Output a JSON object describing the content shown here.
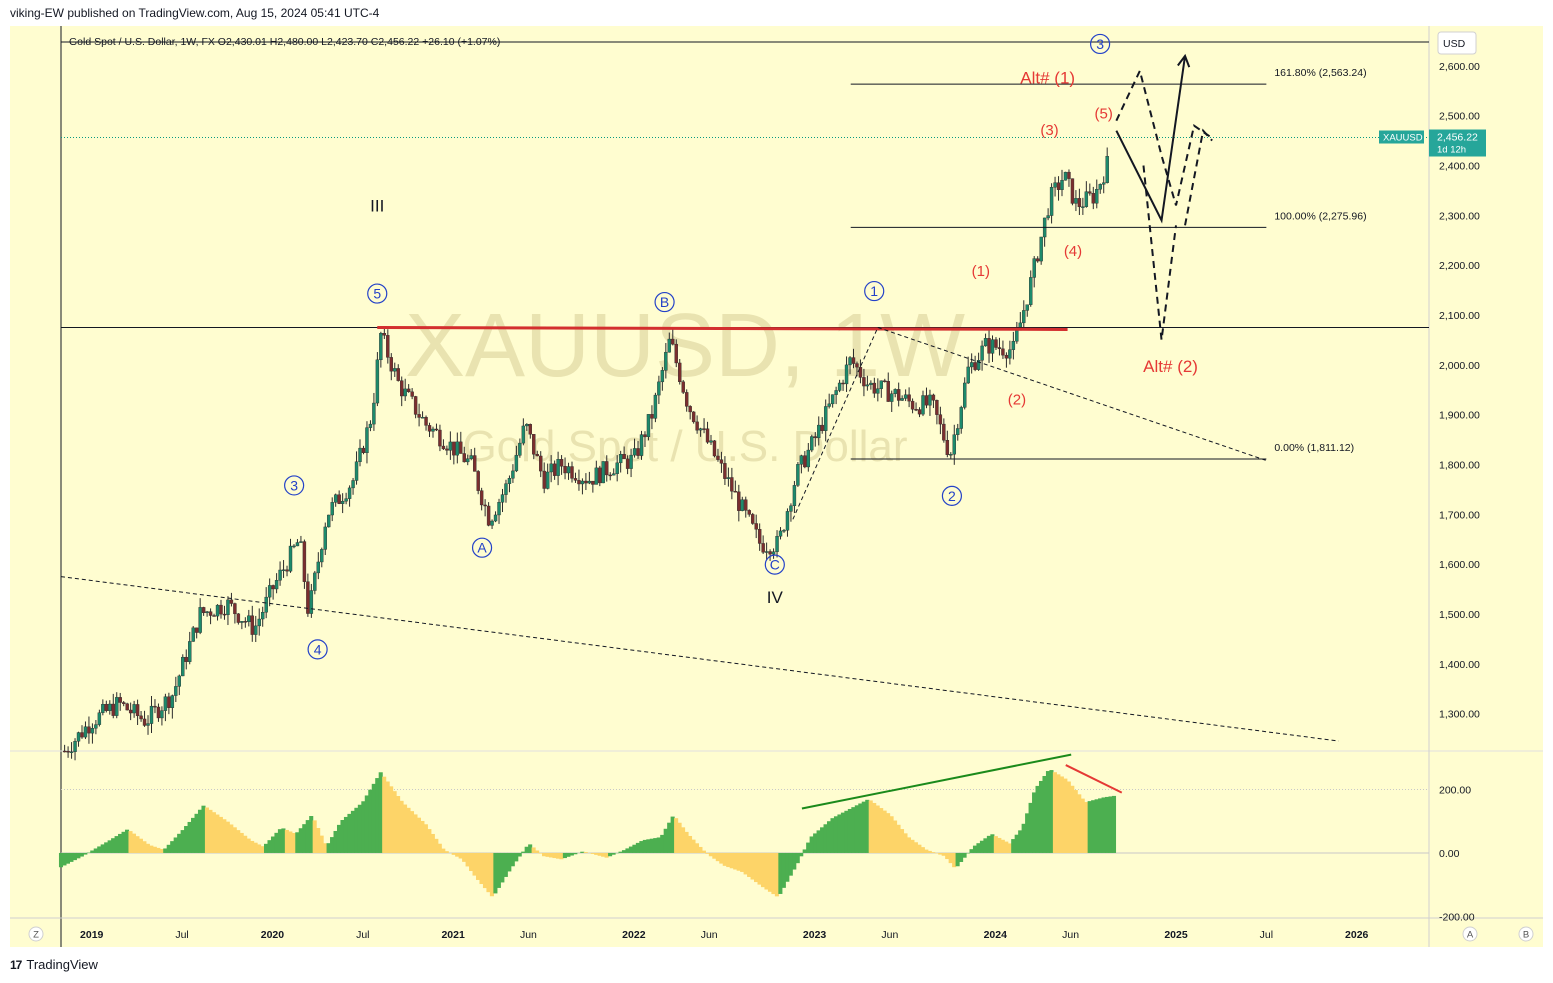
{
  "header": {
    "published": "viking-EW published on TradingView.com, Aug 15, 2024 05:41 UTC-4"
  },
  "footer": {
    "brand": "TradingView"
  },
  "chart_data": {
    "type": "candlestick",
    "symbol_line": "Gold Spot / U.S. Dollar, 1W, FX  O2,430.01  H2,480.00  L2,423.70  C2,456.22  +26.10 (+1.07%)",
    "watermark": {
      "symbol": "XAUUSD, 1W",
      "description": "Gold Spot / U.S. Dollar"
    },
    "currency_label": "USD",
    "price_axis": {
      "ticks": [
        1300,
        1400,
        1500,
        1600,
        1700,
        1800,
        1900,
        2000,
        2100,
        2200,
        2300,
        2400,
        2500,
        2600
      ],
      "tick_labels": [
        "1,300.00",
        "1,400.00",
        "1,500.00",
        "1,600.00",
        "1,700.00",
        "1,800.00",
        "1,900.00",
        "2,000.00",
        "2,100.00",
        "2,200.00",
        "2,300.00",
        "2,400.00",
        "2,500.00",
        "2,600.00"
      ],
      "range": [
        1225,
        2680
      ]
    },
    "time_axis": {
      "labels": [
        {
          "t": 2019.0,
          "label": "2019"
        },
        {
          "t": 2019.5,
          "label": "Jul"
        },
        {
          "t": 2020.0,
          "label": "2020"
        },
        {
          "t": 2020.5,
          "label": "Jul"
        },
        {
          "t": 2021.0,
          "label": "2021"
        },
        {
          "t": 2021.4167,
          "label": "Jun"
        },
        {
          "t": 2022.0,
          "label": "2022"
        },
        {
          "t": 2022.4167,
          "label": "Jun"
        },
        {
          "t": 2023.0,
          "label": "2023"
        },
        {
          "t": 2023.4167,
          "label": "Jun"
        },
        {
          "t": 2024.0,
          "label": "2024"
        },
        {
          "t": 2024.4167,
          "label": "Jun"
        },
        {
          "t": 2025.0,
          "label": "2025"
        },
        {
          "t": 2025.5,
          "label": "Jul"
        },
        {
          "t": 2026.0,
          "label": "2026"
        }
      ],
      "range": [
        2018.83,
        2026.4
      ]
    },
    "last_price": {
      "symbol": "XAUUSD",
      "value": 2456.22,
      "label": "2,456.22",
      "countdown": "1d 12h"
    },
    "price_path": [
      [
        2018.85,
        1225
      ],
      [
        2019.0,
        1285
      ],
      [
        2019.15,
        1320
      ],
      [
        2019.3,
        1285
      ],
      [
        2019.45,
        1340
      ],
      [
        2019.6,
        1500
      ],
      [
        2019.75,
        1520
      ],
      [
        2019.9,
        1470
      ],
      [
        2020.0,
        1550
      ],
      [
        2020.15,
        1650
      ],
      [
        2020.2,
        1500
      ],
      [
        2020.3,
        1700
      ],
      [
        2020.45,
        1770
      ],
      [
        2020.55,
        1900
      ],
      [
        2020.6,
        2060
      ],
      [
        2020.7,
        1960
      ],
      [
        2020.85,
        1880
      ],
      [
        2020.95,
        1850
      ],
      [
        2021.1,
        1800
      ],
      [
        2021.2,
        1690
      ],
      [
        2021.3,
        1760
      ],
      [
        2021.4,
        1880
      ],
      [
        2021.5,
        1770
      ],
      [
        2021.6,
        1800
      ],
      [
        2021.75,
        1770
      ],
      [
        2021.9,
        1800
      ],
      [
        2022.0,
        1810
      ],
      [
        2022.1,
        1900
      ],
      [
        2022.2,
        2050
      ],
      [
        2022.3,
        1920
      ],
      [
        2022.4,
        1850
      ],
      [
        2022.5,
        1780
      ],
      [
        2022.6,
        1710
      ],
      [
        2022.7,
        1640
      ],
      [
        2022.8,
        1640
      ],
      [
        2022.9,
        1780
      ],
      [
        2023.0,
        1850
      ],
      [
        2023.1,
        1930
      ],
      [
        2023.2,
        2010
      ],
      [
        2023.3,
        1960
      ],
      [
        2023.45,
        1940
      ],
      [
        2023.55,
        1920
      ],
      [
        2023.65,
        1920
      ],
      [
        2023.75,
        1820
      ],
      [
        2023.85,
        1990
      ],
      [
        2023.95,
        2040
      ],
      [
        2024.1,
        2030
      ],
      [
        2024.2,
        2170
      ],
      [
        2024.3,
        2330
      ],
      [
        2024.38,
        2380
      ],
      [
        2024.45,
        2320
      ],
      [
        2024.55,
        2340
      ],
      [
        2024.65,
        2430
      ],
      [
        2024.62,
        2456.22
      ]
    ],
    "horizontal_lines": [
      {
        "price": 2075
      }
    ],
    "fib_levels": [
      {
        "price": 2563.24,
        "label": "161.80% (2,563.24)"
      },
      {
        "price": 2275.96,
        "label": "100.00% (2,275.96)"
      },
      {
        "price": 1811.12,
        "label": "0.00% (1,811.12)"
      }
    ],
    "resistance_line": {
      "from": [
        2020.58,
        2075
      ],
      "to": [
        2024.4,
        2071
      ]
    },
    "trend_lines": [
      {
        "from": [
          2018.83,
          1575
        ],
        "to": [
          2025.9,
          1245
        ]
      },
      {
        "from": [
          2023.35,
          2075
        ],
        "to": [
          2025.5,
          1808
        ]
      },
      {
        "from": [
          2022.88,
          1690
        ],
        "to": [
          2023.35,
          2075
        ]
      }
    ],
    "projections": {
      "solid": [
        [
          2024.67,
          2470
        ],
        [
          2024.92,
          2290
        ],
        [
          2025.05,
          2620
        ]
      ],
      "dashed": [
        [
          [
            2024.67,
            2490
          ],
          [
            2024.8,
            2590
          ],
          [
            2024.92,
            2420
          ],
          [
            2025.0,
            2320
          ],
          [
            2025.1,
            2480
          ],
          [
            2025.2,
            2455
          ]
        ],
        [
          [
            2024.82,
            2400
          ],
          [
            2024.92,
            2050
          ],
          [
            2025.0,
            2280
          ]
        ],
        [
          [
            2025.05,
            2280
          ],
          [
            2025.15,
            2470
          ],
          [
            2025.2,
            2450
          ]
        ]
      ]
    },
    "wave_labels": [
      {
        "text": "III",
        "t": 2020.58,
        "p": 2320,
        "color": "#131722",
        "style": "plain"
      },
      {
        "text": "5",
        "t": 2020.58,
        "p": 2143,
        "color": "#2442c8",
        "style": "circle"
      },
      {
        "text": "3",
        "t": 2020.12,
        "p": 1758,
        "color": "#2442c8",
        "style": "circle"
      },
      {
        "text": "4",
        "t": 2020.25,
        "p": 1429,
        "color": "#2442c8",
        "style": "circle"
      },
      {
        "text": "A",
        "t": 2021.16,
        "p": 1633,
        "color": "#2442c8",
        "style": "circle"
      },
      {
        "text": "B",
        "t": 2022.17,
        "p": 2126,
        "color": "#2442c8",
        "style": "circle"
      },
      {
        "text": "C",
        "t": 2022.78,
        "p": 1599,
        "color": "#2442c8",
        "style": "circle"
      },
      {
        "text": "IV",
        "t": 2022.78,
        "p": 1534,
        "color": "#131722",
        "style": "plain"
      },
      {
        "text": "1",
        "t": 2023.33,
        "p": 2148,
        "color": "#2442c8",
        "style": "circle"
      },
      {
        "text": "2",
        "t": 2023.76,
        "p": 1737,
        "color": "#2442c8",
        "style": "circle"
      },
      {
        "text": "3",
        "t": 2024.58,
        "p": 2644,
        "color": "#2442c8",
        "style": "circle"
      },
      {
        "text": "(1)",
        "t": 2023.92,
        "p": 2190,
        "color": "#e53935",
        "style": "paren"
      },
      {
        "text": "(2)",
        "t": 2024.12,
        "p": 1932,
        "color": "#e53935",
        "style": "paren"
      },
      {
        "text": "(3)",
        "t": 2024.3,
        "p": 2473,
        "color": "#e53935",
        "style": "paren"
      },
      {
        "text": "(4)",
        "t": 2024.43,
        "p": 2230,
        "color": "#e53935",
        "style": "paren"
      },
      {
        "text": "(5)",
        "t": 2024.6,
        "p": 2506,
        "color": "#e53935",
        "style": "paren"
      },
      {
        "text": "Alt# (1)",
        "t": 2024.29,
        "p": 2577,
        "color": "#e53935",
        "style": "big"
      },
      {
        "text": "Alt# (2)",
        "t": 2024.97,
        "p": 1998,
        "color": "#e53935",
        "style": "big"
      }
    ],
    "oscillator": {
      "ticks": [
        -200,
        0,
        200
      ],
      "tick_labels": [
        "-200.00",
        "0.00",
        "200.00"
      ],
      "range": [
        -205,
        315
      ],
      "values": [
        [
          2018.83,
          -45
        ],
        [
          2018.95,
          -10
        ],
        [
          2019.1,
          40
        ],
        [
          2019.2,
          75
        ],
        [
          2019.32,
          25
        ],
        [
          2019.4,
          10
        ],
        [
          2019.5,
          70
        ],
        [
          2019.62,
          150
        ],
        [
          2019.75,
          100
        ],
        [
          2019.88,
          40
        ],
        [
          2019.95,
          20
        ],
        [
          2020.05,
          80
        ],
        [
          2020.13,
          60
        ],
        [
          2020.22,
          120
        ],
        [
          2020.3,
          20
        ],
        [
          2020.38,
          100
        ],
        [
          2020.5,
          160
        ],
        [
          2020.6,
          255
        ],
        [
          2020.72,
          160
        ],
        [
          2020.85,
          90
        ],
        [
          2020.95,
          10
        ],
        [
          2021.05,
          -20
        ],
        [
          2021.13,
          -80
        ],
        [
          2021.22,
          -140
        ],
        [
          2021.32,
          -50
        ],
        [
          2021.42,
          30
        ],
        [
          2021.5,
          -10
        ],
        [
          2021.6,
          -20
        ],
        [
          2021.72,
          5
        ],
        [
          2021.85,
          -15
        ],
        [
          2021.95,
          10
        ],
        [
          2022.05,
          40
        ],
        [
          2022.15,
          50
        ],
        [
          2022.22,
          120
        ],
        [
          2022.3,
          60
        ],
        [
          2022.4,
          0
        ],
        [
          2022.5,
          -40
        ],
        [
          2022.6,
          -60
        ],
        [
          2022.72,
          -110
        ],
        [
          2022.8,
          -140
        ],
        [
          2022.9,
          -40
        ],
        [
          2022.98,
          50
        ],
        [
          2023.1,
          110
        ],
        [
          2023.2,
          140
        ],
        [
          2023.3,
          170
        ],
        [
          2023.42,
          120
        ],
        [
          2023.52,
          50
        ],
        [
          2023.62,
          10
        ],
        [
          2023.72,
          -10
        ],
        [
          2023.78,
          -50
        ],
        [
          2023.88,
          20
        ],
        [
          2023.98,
          60
        ],
        [
          2024.08,
          30
        ],
        [
          2024.15,
          80
        ],
        [
          2024.22,
          200
        ],
        [
          2024.3,
          265
        ],
        [
          2024.4,
          230
        ],
        [
          2024.5,
          160
        ],
        [
          2024.6,
          175
        ],
        [
          2024.66,
          180
        ]
      ],
      "trend_up": {
        "from": [
          2022.93,
          140
        ],
        "to": [
          2024.42,
          310
        ]
      },
      "trend_down": {
        "from": [
          2024.39,
          277
        ],
        "to": [
          2024.7,
          190
        ]
      }
    },
    "bottom_buttons": {
      "z": "Z",
      "a": "A",
      "b": "B"
    }
  }
}
